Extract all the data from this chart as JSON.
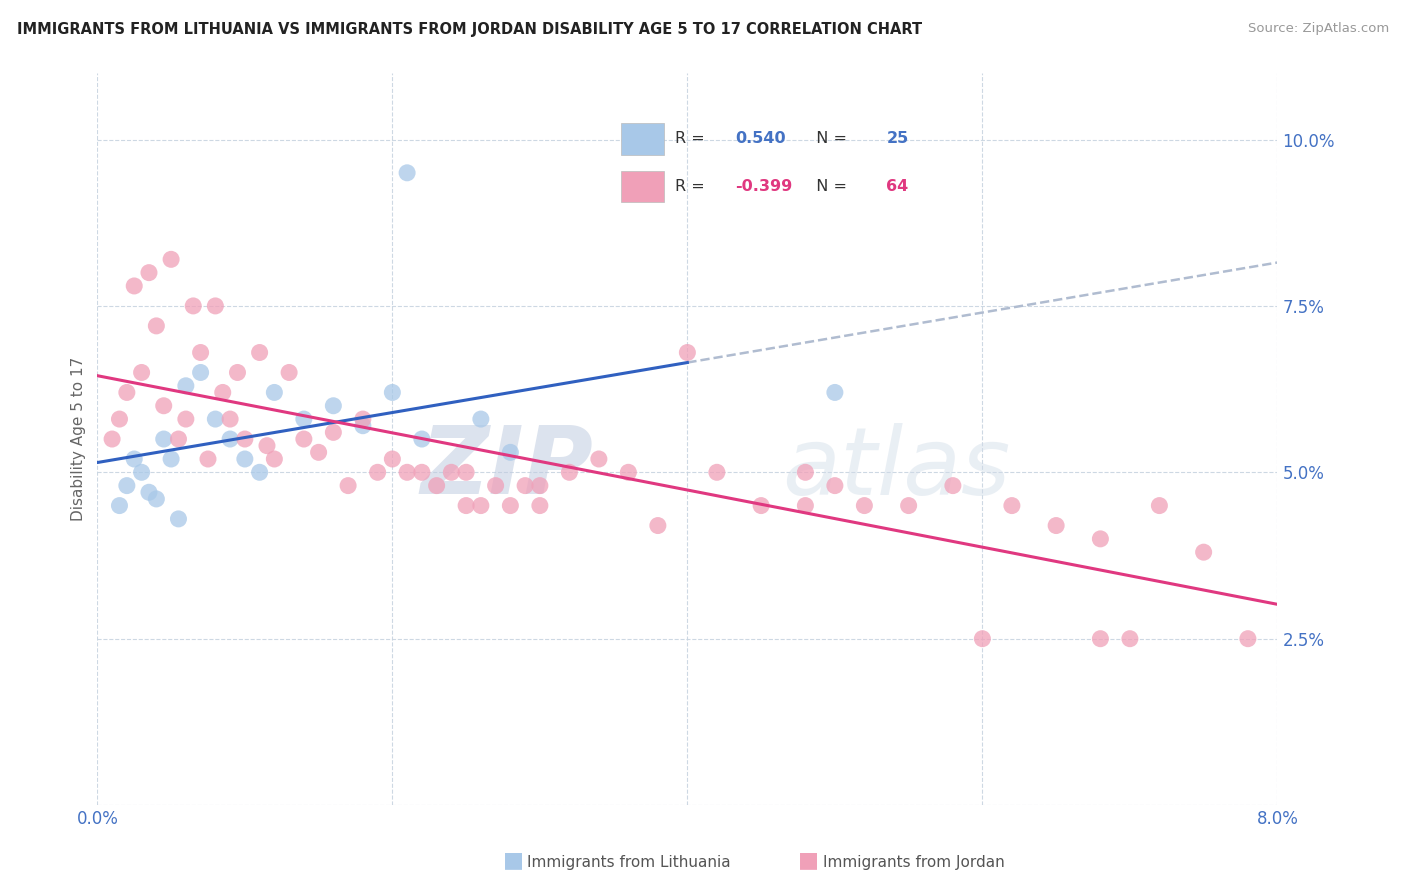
{
  "title": "IMMIGRANTS FROM LITHUANIA VS IMMIGRANTS FROM JORDAN DISABILITY AGE 5 TO 17 CORRELATION CHART",
  "source": "Source: ZipAtlas.com",
  "ylabel": "Disability Age 5 to 17",
  "xlim": [
    0.0,
    8.0
  ],
  "ylim": [
    0.0,
    11.0
  ],
  "lithuania_R": 0.54,
  "lithuania_N": 25,
  "jordan_R": -0.399,
  "jordan_N": 64,
  "color_lithuania": "#a8c8e8",
  "color_jordan": "#f0a0b8",
  "color_line_lithuania": "#3060C0",
  "color_line_jordan": "#E03880",
  "color_dashed": "#b0bcd0",
  "watermark_zip": "ZIP",
  "watermark_atlas": "atlas",
  "lithuania_x": [
    0.15,
    0.2,
    0.25,
    0.3,
    0.35,
    0.4,
    0.45,
    0.5,
    0.55,
    0.6,
    0.7,
    0.8,
    0.9,
    1.0,
    1.1,
    1.2,
    1.4,
    1.6,
    1.8,
    2.0,
    2.1,
    2.2,
    2.6,
    2.8,
    5.0
  ],
  "lithuania_y": [
    4.5,
    4.8,
    5.2,
    5.0,
    4.7,
    4.6,
    5.5,
    5.2,
    4.3,
    6.3,
    6.5,
    5.8,
    5.5,
    5.2,
    5.0,
    6.2,
    5.8,
    6.0,
    5.7,
    6.2,
    9.5,
    5.5,
    5.8,
    5.3,
    6.2
  ],
  "jordan_x": [
    0.1,
    0.15,
    0.2,
    0.25,
    0.3,
    0.35,
    0.4,
    0.45,
    0.5,
    0.55,
    0.6,
    0.65,
    0.7,
    0.75,
    0.8,
    0.85,
    0.9,
    0.95,
    1.0,
    1.1,
    1.15,
    1.2,
    1.3,
    1.4,
    1.5,
    1.6,
    1.7,
    1.8,
    1.9,
    2.0,
    2.1,
    2.2,
    2.3,
    2.4,
    2.5,
    2.6,
    2.7,
    2.8,
    2.9,
    3.0,
    3.2,
    3.4,
    3.6,
    3.8,
    4.0,
    4.2,
    4.5,
    4.8,
    5.0,
    5.2,
    5.5,
    5.8,
    6.0,
    6.2,
    6.5,
    6.8,
    7.0,
    7.2,
    7.5,
    7.8,
    6.8,
    4.8,
    3.0,
    2.5
  ],
  "jordan_y": [
    5.5,
    5.8,
    6.2,
    7.8,
    6.5,
    8.0,
    7.2,
    6.0,
    8.2,
    5.5,
    5.8,
    7.5,
    6.8,
    5.2,
    7.5,
    6.2,
    5.8,
    6.5,
    5.5,
    6.8,
    5.4,
    5.2,
    6.5,
    5.5,
    5.3,
    5.6,
    4.8,
    5.8,
    5.0,
    5.2,
    5.0,
    5.0,
    4.8,
    5.0,
    5.0,
    4.5,
    4.8,
    4.5,
    4.8,
    4.5,
    5.0,
    5.2,
    5.0,
    4.2,
    6.8,
    5.0,
    4.5,
    5.0,
    4.8,
    4.5,
    4.5,
    4.8,
    2.5,
    4.5,
    4.2,
    4.0,
    2.5,
    4.5,
    3.8,
    2.5,
    2.5,
    4.5,
    4.8,
    4.5
  ]
}
